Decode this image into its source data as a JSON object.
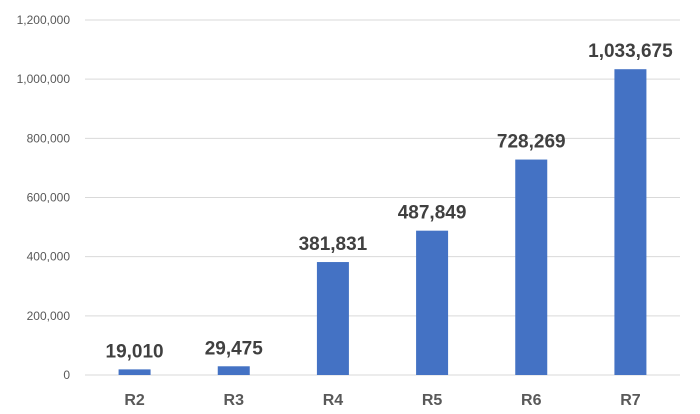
{
  "chart_data": {
    "type": "bar",
    "title": "",
    "xlabel": "",
    "ylabel": "",
    "categories": [
      "R2",
      "R3",
      "R4",
      "R5",
      "R6",
      "R7"
    ],
    "values": [
      19010,
      29475,
      381831,
      487849,
      728269,
      1033675
    ],
    "data_labels": [
      "19,010",
      "29,475",
      "381,831",
      "487,849",
      "728,269",
      "1,033,675"
    ],
    "ylim": [
      0,
      1200000
    ],
    "yticks": [
      0,
      200000,
      400000,
      600000,
      800000,
      1000000,
      1200000
    ],
    "ytick_labels": [
      "0",
      "200,000",
      "400,000",
      "600,000",
      "800,000",
      "1,000,000",
      "1,200,000"
    ],
    "grid": true,
    "legend": "none",
    "bar_color": "#4472c4"
  }
}
